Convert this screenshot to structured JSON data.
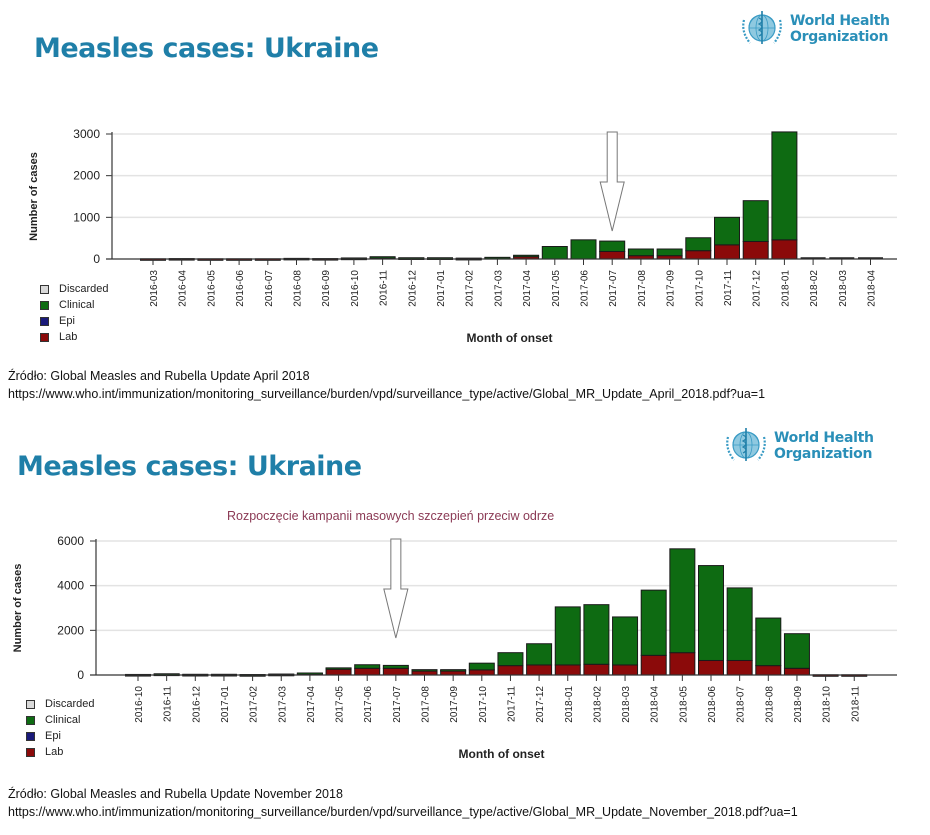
{
  "panels": [
    {
      "title": "Measles cases: Ukraine",
      "logo": {
        "icon": "who-emblem-icon",
        "line1": "World Health",
        "line2": "Organization"
      },
      "source_label": "Źródło: Global Measles and Rubella Update April 2018",
      "source_url": "https://www.who.int/immunization/monitoring_surveillance/burden/vpd/surveillance_type/active/Global_MR_Update_April_2018.pdf?ua=1",
      "annotation": "",
      "arrow_at": "2017-07"
    },
    {
      "title": "Measles cases: Ukraine",
      "logo": {
        "icon": "who-emblem-icon",
        "line1": "World Health",
        "line2": "Organization"
      },
      "source_label": "Źródło: Global Measles and Rubella Update November 2018",
      "source_url": "https://www.who.int/immunization/monitoring_surveillance/burden/vpd/surveillance_type/active/Global_MR_Update_November_2018.pdf?ua=1",
      "annotation": "Rozpoczęcie kampanii masowych szczepień przeciw odrze",
      "arrow_at": "2017-07"
    }
  ],
  "legend": [
    {
      "label": "Discarded",
      "color": "#d9d9d9"
    },
    {
      "label": "Clinical",
      "color": "#0e6b12"
    },
    {
      "label": "Epi",
      "color": "#1a1a7a"
    },
    {
      "label": "Lab",
      "color": "#8b0a0a"
    }
  ],
  "chart_data": [
    {
      "type": "bar",
      "stacked": true,
      "title": "Measles cases: Ukraine",
      "xlabel": "Month of onset",
      "ylabel": "Number of cases",
      "ylim": [
        0,
        3000
      ],
      "yticks": [
        0,
        1000,
        2000,
        3000
      ],
      "grid": true,
      "legend_position": "bottom-left",
      "categories": [
        "2016-03",
        "2016-04",
        "2016-05",
        "2016-06",
        "2016-07",
        "2016-08",
        "2016-09",
        "2016-10",
        "2016-11",
        "2016-12",
        "2017-01",
        "2017-02",
        "2017-03",
        "2017-04",
        "2017-05",
        "2017-06",
        "2017-07",
        "2017-08",
        "2017-09",
        "2017-10",
        "2017-11",
        "2017-12",
        "2018-01",
        "2018-02",
        "2018-03",
        "2018-04"
      ],
      "series": [
        {
          "name": "Lab",
          "values": [
            5,
            10,
            5,
            5,
            5,
            15,
            10,
            20,
            40,
            25,
            25,
            15,
            35,
            70,
            0,
            0,
            180,
            80,
            80,
            200,
            340,
            420,
            460,
            0,
            0,
            0
          ]
        },
        {
          "name": "Epi",
          "values": [
            0,
            0,
            0,
            0,
            0,
            0,
            0,
            0,
            0,
            0,
            0,
            0,
            0,
            0,
            0,
            0,
            0,
            0,
            0,
            0,
            0,
            0,
            0,
            0,
            0,
            0
          ]
        },
        {
          "name": "Clinical",
          "values": [
            0,
            0,
            0,
            0,
            0,
            0,
            0,
            5,
            15,
            5,
            5,
            5,
            5,
            20,
            300,
            460,
            250,
            160,
            160,
            310,
            660,
            980,
            2590,
            0,
            0,
            0
          ]
        },
        {
          "name": "Discarded",
          "values": [
            0,
            0,
            0,
            0,
            0,
            0,
            0,
            0,
            0,
            0,
            0,
            0,
            0,
            0,
            0,
            0,
            0,
            0,
            0,
            0,
            0,
            0,
            0,
            0,
            0,
            0
          ]
        }
      ]
    },
    {
      "type": "bar",
      "stacked": true,
      "title": "Measles cases: Ukraine",
      "xlabel": "Month of onset",
      "ylabel": "Number of cases",
      "ylim": [
        0,
        6000
      ],
      "yticks": [
        0,
        2000,
        4000,
        6000
      ],
      "grid": true,
      "legend_position": "bottom-left",
      "categories": [
        "2016-10",
        "2016-11",
        "2016-12",
        "2017-01",
        "2017-02",
        "2017-03",
        "2017-04",
        "2017-05",
        "2017-06",
        "2017-07",
        "2017-08",
        "2017-09",
        "2017-10",
        "2017-11",
        "2017-12",
        "2018-01",
        "2018-02",
        "2018-03",
        "2018-04",
        "2018-05",
        "2018-06",
        "2018-07",
        "2018-08",
        "2018-09",
        "2018-10",
        "2018-11"
      ],
      "series": [
        {
          "name": "Lab",
          "values": [
            20,
            40,
            25,
            25,
            15,
            35,
            70,
            300,
            300,
            300,
            200,
            200,
            230,
            420,
            450,
            450,
            480,
            450,
            880,
            1000,
            650,
            650,
            420,
            300,
            10,
            10
          ]
        },
        {
          "name": "Epi",
          "values": [
            0,
            0,
            0,
            0,
            0,
            0,
            0,
            0,
            0,
            0,
            0,
            0,
            0,
            0,
            0,
            0,
            0,
            0,
            0,
            0,
            0,
            0,
            0,
            0,
            0,
            0
          ]
        },
        {
          "name": "Clinical",
          "values": [
            5,
            15,
            5,
            5,
            5,
            5,
            20,
            20,
            160,
            130,
            40,
            40,
            300,
            580,
            950,
            2600,
            2670,
            2150,
            2920,
            4650,
            4250,
            3250,
            2130,
            1550,
            0,
            0
          ]
        },
        {
          "name": "Discarded",
          "values": [
            0,
            0,
            0,
            0,
            0,
            0,
            0,
            0,
            0,
            0,
            0,
            0,
            0,
            0,
            0,
            0,
            0,
            0,
            0,
            0,
            0,
            0,
            0,
            0,
            0,
            0
          ]
        }
      ]
    }
  ]
}
